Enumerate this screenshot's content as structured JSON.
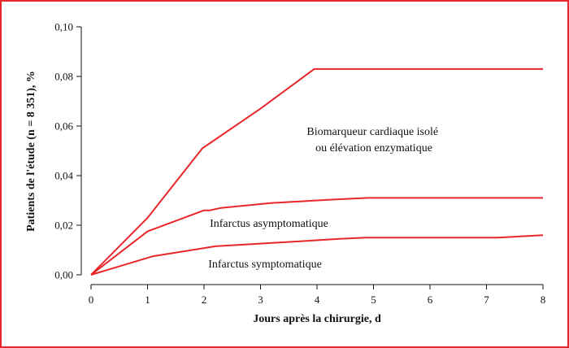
{
  "chart_data": {
    "type": "line",
    "xlabel": "Jours après la chirurgie, d",
    "ylabel": "Patients de l'étude (n = 8 351), %",
    "xlim": [
      0,
      8
    ],
    "ylim": [
      0,
      0.1
    ],
    "x_ticks": [
      0,
      1,
      2,
      3,
      4,
      5,
      6,
      7,
      8
    ],
    "x_tick_labels": [
      "0",
      "1",
      "2",
      "3",
      "4",
      "5",
      "6",
      "7",
      "8"
    ],
    "y_ticks": [
      0,
      0.02,
      0.04,
      0.06,
      0.08,
      0.1
    ],
    "y_tick_labels": [
      "0,00",
      "0,02",
      "0,04",
      "0,06",
      "0,08",
      "0,10"
    ],
    "grid": false,
    "series_color": "#e8262a",
    "series": [
      {
        "x": [
          0,
          1,
          1.97,
          3,
          3.95,
          8
        ],
        "y": [
          0,
          0.023,
          0.051,
          0.067,
          0.083,
          0.083
        ]
      },
      {
        "x": [
          0,
          1,
          2,
          2.1,
          2.3,
          3.2,
          4.4,
          4.9,
          8
        ],
        "y": [
          0,
          0.0175,
          0.026,
          0.026,
          0.027,
          0.029,
          0.0305,
          0.031,
          0.031
        ]
      },
      {
        "x": [
          0,
          1.1,
          2.2,
          3.3,
          4.4,
          4.85,
          7.2,
          8
        ],
        "y": [
          0,
          0.0075,
          0.0115,
          0.013,
          0.0145,
          0.015,
          0.015,
          0.016
        ]
      }
    ],
    "annotations": [
      {
        "lines": [
          "Biomarqueur cardiaque isolé",
          "ou élévation enzymatique"
        ]
      },
      {
        "lines": [
          "Infarctus asymptomatique"
        ]
      },
      {
        "lines": [
          "Infarctus symptomatique"
        ]
      }
    ]
  }
}
